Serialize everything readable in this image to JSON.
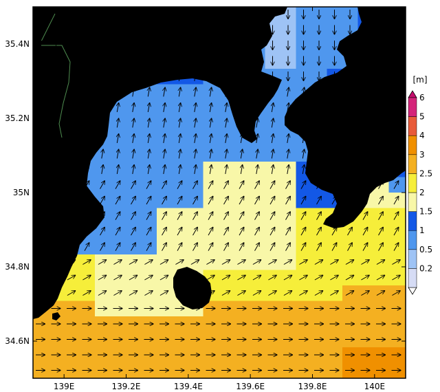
{
  "map": {
    "lat_axis": {
      "range": [
        34.5,
        35.5
      ],
      "ticks": [
        {
          "value": 35.4,
          "label": "35.4N"
        },
        {
          "value": 35.2,
          "label": "35.2N"
        },
        {
          "value": 35.0,
          "label": "35N"
        },
        {
          "value": 34.8,
          "label": "34.8N"
        },
        {
          "value": 34.6,
          "label": "34.6N"
        }
      ]
    },
    "lon_axis": {
      "range": [
        138.9,
        140.1
      ],
      "ticks": [
        {
          "value": 139.0,
          "label": "139E"
        },
        {
          "value": 139.2,
          "label": "139.2E"
        },
        {
          "value": 139.4,
          "label": "139.4E"
        },
        {
          "value": 139.6,
          "label": "139.6E"
        },
        {
          "value": 139.8,
          "label": "139.8E"
        },
        {
          "value": 140.0,
          "label": "140E"
        }
      ]
    },
    "land_color": "#73b970",
    "colorbar": {
      "unit": "[m]",
      "levels": [
        {
          "label": "0.2",
          "color": "#d6dcf5"
        },
        {
          "label": "0.5",
          "color": "#9ec3f5"
        },
        {
          "label": "1",
          "color": "#4f97ee"
        },
        {
          "label": "1.5",
          "color": "#1358e6"
        },
        {
          "label": "2",
          "color": "#f8f7a8"
        },
        {
          "label": "2.5",
          "color": "#f6ee3a"
        },
        {
          "label": "3",
          "color": "#f4b021"
        },
        {
          "label": "4",
          "color": "#f09000"
        },
        {
          "label": "5",
          "color": "#e85b3a"
        },
        {
          "label": "6",
          "color": "#d4247a"
        }
      ],
      "top_color": "#c40d6d",
      "bottom_color": "#ffffff"
    }
  }
}
